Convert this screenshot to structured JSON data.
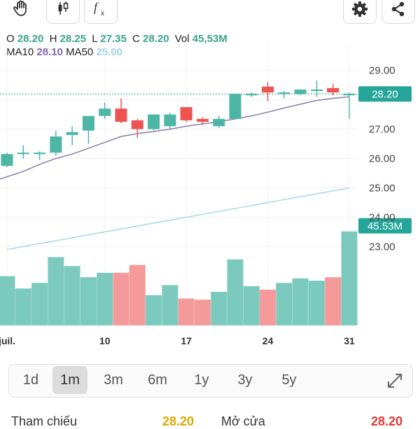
{
  "ohlc": {
    "open_label": "O",
    "open": "28.20",
    "high_label": "H",
    "high": "28.25",
    "low_label": "L",
    "low": "27.35",
    "close_label": "C",
    "close": "28.20",
    "vol_label": "Vol",
    "vol": "45,53M"
  },
  "ma": {
    "ma10_label": "MA10",
    "ma10": "28.10",
    "ma50_label": "MA50",
    "ma50": "25.00"
  },
  "toolbar": {
    "icons": [
      "hand-icon",
      "candlestick-icon",
      "function-icon",
      "settings-icon",
      "share-icon"
    ]
  },
  "colors": {
    "up": "#4db6a5",
    "down": "#ef5350",
    "vol_up": "#7ccabd",
    "vol_down": "#f59a9a",
    "ma10": "#8b7bb0",
    "ma50": "#a9d7ea",
    "last_price_tag": "#26a69a"
  },
  "chart_data": {
    "type": "candlestick",
    "price_ticks": [
      "29.00",
      "28.00",
      "27.00",
      "26.00",
      "25.00",
      "24.00",
      "23.00"
    ],
    "price_range": [
      22.1,
      29.35
    ],
    "x_ticks": [
      {
        "label": "juil.",
        "index": 0
      },
      {
        "label": "10",
        "index": 6
      },
      {
        "label": "17",
        "index": 11
      },
      {
        "label": "24",
        "index": 16
      },
      {
        "label": "31",
        "index": 21
      }
    ],
    "last_price_label": "28.20",
    "last_price": 28.2,
    "last_volume_label": "45.53M",
    "last_volume_level": 0.84,
    "candles": [
      {
        "o": 25.75,
        "h": 26.2,
        "l": 25.7,
        "c": 26.15,
        "v": 0.44
      },
      {
        "o": 26.15,
        "h": 26.45,
        "l": 26.0,
        "c": 26.2,
        "v": 0.33
      },
      {
        "o": 26.15,
        "h": 26.25,
        "l": 25.95,
        "c": 26.2,
        "v": 0.38
      },
      {
        "o": 26.2,
        "h": 26.95,
        "l": 26.1,
        "c": 26.75,
        "v": 0.61
      },
      {
        "o": 26.8,
        "h": 27.1,
        "l": 26.45,
        "c": 26.9,
        "v": 0.53
      },
      {
        "o": 26.95,
        "h": 27.45,
        "l": 26.5,
        "c": 27.45,
        "v": 0.43
      },
      {
        "o": 27.45,
        "h": 27.9,
        "l": 27.35,
        "c": 27.7,
        "v": 0.47
      },
      {
        "o": 27.7,
        "h": 28.05,
        "l": 27.2,
        "c": 27.25,
        "v": 0.47
      },
      {
        "o": 27.3,
        "h": 27.35,
        "l": 26.7,
        "c": 27.0,
        "v": 0.54
      },
      {
        "o": 27.0,
        "h": 27.5,
        "l": 26.95,
        "c": 27.5,
        "v": 0.27
      },
      {
        "o": 27.1,
        "h": 27.55,
        "l": 27.0,
        "c": 27.5,
        "v": 0.36
      },
      {
        "o": 27.75,
        "h": 27.75,
        "l": 27.25,
        "c": 27.3,
        "v": 0.24
      },
      {
        "o": 27.35,
        "h": 27.4,
        "l": 27.15,
        "c": 27.25,
        "v": 0.23
      },
      {
        "o": 27.1,
        "h": 27.45,
        "l": 27.05,
        "c": 27.35,
        "v": 0.3
      },
      {
        "o": 27.35,
        "h": 28.2,
        "l": 27.35,
        "c": 28.2,
        "v": 0.59
      },
      {
        "o": 28.2,
        "h": 28.25,
        "l": 28.1,
        "c": 28.2,
        "v": 0.35
      },
      {
        "o": 28.45,
        "h": 28.6,
        "l": 27.95,
        "c": 28.25,
        "v": 0.32
      },
      {
        "o": 28.2,
        "h": 28.3,
        "l": 28.05,
        "c": 28.25,
        "v": 0.38
      },
      {
        "o": 28.2,
        "h": 28.35,
        "l": 28.15,
        "c": 28.35,
        "v": 0.42
      },
      {
        "o": 28.3,
        "h": 28.65,
        "l": 28.1,
        "c": 28.35,
        "v": 0.4
      },
      {
        "o": 28.4,
        "h": 28.55,
        "l": 28.15,
        "c": 28.25,
        "v": 0.43
      },
      {
        "o": 28.2,
        "h": 28.25,
        "l": 27.35,
        "c": 28.2,
        "v": 0.84
      }
    ],
    "ma10": [
      25.3,
      25.56,
      25.8,
      26.0,
      26.15,
      26.35,
      26.55,
      26.75,
      26.85,
      26.92,
      27.0,
      27.1,
      27.18,
      27.25,
      27.35,
      27.45,
      27.58,
      27.72,
      27.85,
      27.98,
      28.05,
      28.1
    ],
    "ma50_start": 22.9,
    "ma50_end": 25.0
  },
  "ranges": {
    "items": [
      "1d",
      "1m",
      "3m",
      "6m",
      "1y",
      "3y",
      "5y"
    ],
    "active": "1m"
  },
  "bottom": {
    "left_text": "Tham chiếu",
    "left_value": "28.20",
    "mid_text": "Mở cửa",
    "right_value": "28.20"
  }
}
